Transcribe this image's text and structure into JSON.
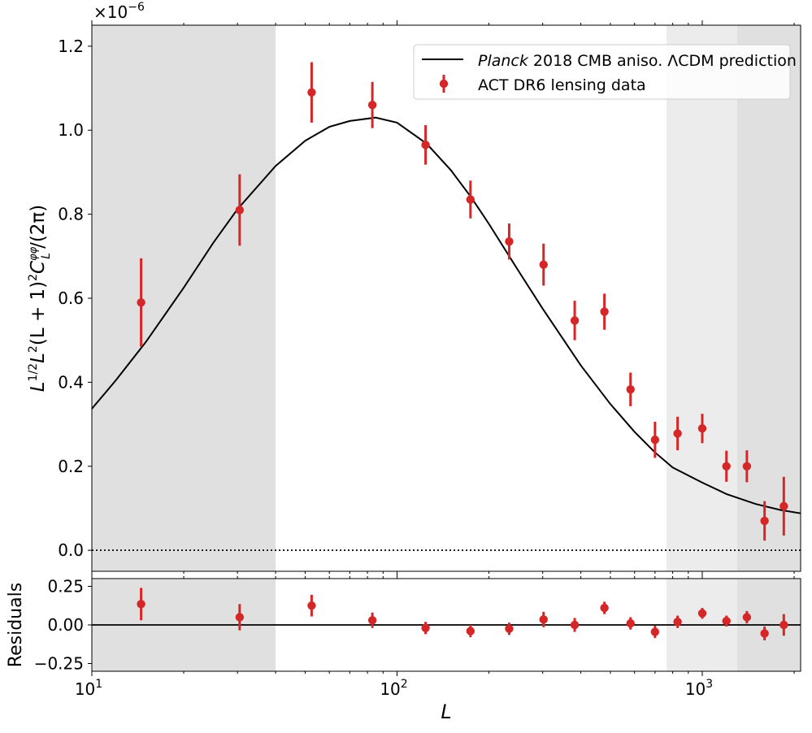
{
  "chart_data": [
    {
      "type": "scatter",
      "panel": "main",
      "xscale": "log",
      "xlim": [
        10,
        2100
      ],
      "ylim": [
        -0.05,
        1.25
      ],
      "y_multiplier_label": "×10",
      "y_multiplier_exp": "−6",
      "yticks": [
        0.0,
        0.2,
        0.4,
        0.6,
        0.8,
        1.0,
        1.2
      ],
      "ytick_labels": [
        "0.0",
        "0.2",
        "0.4",
        "0.6",
        "0.8",
        "1.0",
        "1.2"
      ],
      "ylabel": "L^{1/2}L^2(L+1)^2 C_L^{φφ}/(2π)",
      "ylabel_parts": {
        "a": "L",
        "a_sup": "1/2",
        "b": "L",
        "b_sup": "2",
        "c": "(L + 1)",
        "c_sup": "2",
        "d": "C",
        "d_sub": "L",
        "d_sup": "φφ",
        "e": "/(2π)"
      },
      "shaded_regions": [
        {
          "x": [
            10,
            40
          ],
          "shade": "dark"
        },
        {
          "x": [
            763,
            1300
          ],
          "shade": "light"
        },
        {
          "x": [
            1300,
            2100
          ],
          "shade": "dark"
        }
      ],
      "reference_line": {
        "y": 0.0,
        "style": "dotted"
      },
      "legend_position": "top-right",
      "legend": [
        {
          "pre": "Planck",
          "post": " 2018 CMB aniso. ΛCDM prediction",
          "kind": "line"
        },
        {
          "pre": "",
          "post": "ACT DR6 lensing data",
          "kind": "errorbar"
        }
      ],
      "series": [
        {
          "name": "Planck 2018 CMB aniso. ΛCDM prediction",
          "kind": "line",
          "color": "#000000",
          "x": [
            10,
            12,
            15,
            20,
            25,
            30,
            40,
            50,
            60,
            70,
            85,
            100,
            125,
            150,
            175,
            200,
            250,
            300,
            400,
            500,
            600,
            700,
            800,
            1000,
            1200,
            1500,
            1800,
            2100
          ],
          "y": [
            0.337,
            0.405,
            0.495,
            0.625,
            0.732,
            0.812,
            0.915,
            0.975,
            1.008,
            1.022,
            1.03,
            1.018,
            0.968,
            0.905,
            0.84,
            0.777,
            0.665,
            0.575,
            0.44,
            0.348,
            0.282,
            0.233,
            0.197,
            0.161,
            0.134,
            0.11,
            0.096,
            0.088
          ]
        },
        {
          "name": "ACT DR6 lensing data",
          "kind": "errorbar",
          "color": "#d62728",
          "x": [
            14.5,
            30.5,
            52.5,
            83,
            124,
            174,
            233,
            302,
            382,
            478,
            582,
            700,
            830,
            1000,
            1200,
            1400,
            1600,
            1850
          ],
          "y": [
            0.59,
            0.81,
            1.09,
            1.06,
            0.965,
            0.835,
            0.735,
            0.68,
            0.547,
            0.568,
            0.383,
            0.263,
            0.278,
            0.29,
            0.2,
            0.2,
            0.07,
            0.105
          ],
          "err": [
            0.105,
            0.085,
            0.072,
            0.055,
            0.047,
            0.045,
            0.043,
            0.05,
            0.047,
            0.043,
            0.04,
            0.043,
            0.04,
            0.035,
            0.037,
            0.038,
            0.047,
            0.07
          ]
        }
      ]
    },
    {
      "type": "scatter",
      "panel": "residuals",
      "xscale": "log",
      "xlim": [
        10,
        2100
      ],
      "ylim": [
        -0.3,
        0.3
      ],
      "yticks": [
        0.25,
        0.0,
        -0.25
      ],
      "ytick_labels": [
        "0.25",
        "0.00",
        "−0.25"
      ],
      "ylabel": "Residuals",
      "xlabel": "L",
      "xtick_values": [
        10,
        100,
        1000
      ],
      "xtick_labels": [
        {
          "base": "10",
          "exp": "1"
        },
        {
          "base": "10",
          "exp": "2"
        },
        {
          "base": "10",
          "exp": "3"
        }
      ],
      "reference_line": {
        "y": 0.0,
        "style": "solid"
      },
      "series": [
        {
          "name": "ACT DR6 lensing data",
          "kind": "errorbar",
          "color": "#d62728",
          "x": [
            14.5,
            30.5,
            52.5,
            83,
            124,
            174,
            233,
            302,
            382,
            478,
            582,
            700,
            830,
            1000,
            1200,
            1400,
            1600,
            1850
          ],
          "y": [
            0.135,
            0.05,
            0.125,
            0.03,
            -0.02,
            -0.04,
            -0.025,
            0.035,
            0.0,
            0.11,
            0.01,
            -0.045,
            0.02,
            0.075,
            0.025,
            0.05,
            -0.055,
            0.0
          ],
          "err": [
            0.105,
            0.085,
            0.07,
            0.05,
            0.04,
            0.04,
            0.04,
            0.05,
            0.045,
            0.04,
            0.04,
            0.04,
            0.04,
            0.035,
            0.035,
            0.04,
            0.045,
            0.07
          ]
        }
      ]
    }
  ]
}
